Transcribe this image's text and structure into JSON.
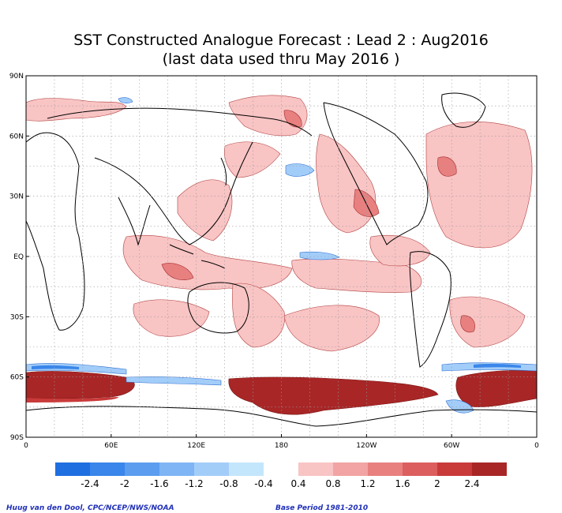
{
  "title": {
    "line1": "SST Constructed Analogue Forecast : Lead 2 : Aug2016",
    "line2": "(last data used thru May 2016 )"
  },
  "axes": {
    "lat_labels": [
      "90N",
      "60N",
      "30N",
      "EQ",
      "30S",
      "60S",
      "90S"
    ],
    "lat_values": [
      90,
      60,
      30,
      0,
      -30,
      -60,
      -90
    ],
    "lon_labels": [
      "0",
      "60E",
      "120E",
      "180",
      "120W",
      "60W",
      "0"
    ],
    "lon_values": [
      0,
      60,
      120,
      180,
      240,
      300,
      360
    ]
  },
  "colorbar": {
    "negative": {
      "colors": [
        "#1f6fe0",
        "#3a86ea",
        "#5c9df0",
        "#7fb5f5",
        "#a3cdf9",
        "#c4e6fc"
      ],
      "labels": [
        "-2.4",
        "-2",
        "-1.6",
        "-1.2",
        "-0.8",
        "-0.4"
      ]
    },
    "positive": {
      "colors": [
        "#f9c4c4",
        "#f2a3a3",
        "#e88080",
        "#dc5e5e",
        "#c93a3a",
        "#a82626"
      ],
      "labels": [
        "0.4",
        "0.8",
        "1.2",
        "1.6",
        "2",
        "2.4"
      ]
    }
  },
  "credits": {
    "left": "Huug van den Dool, CPC/NCEP/NWS/NOAA",
    "right": "Base Period 1981-2010"
  }
}
